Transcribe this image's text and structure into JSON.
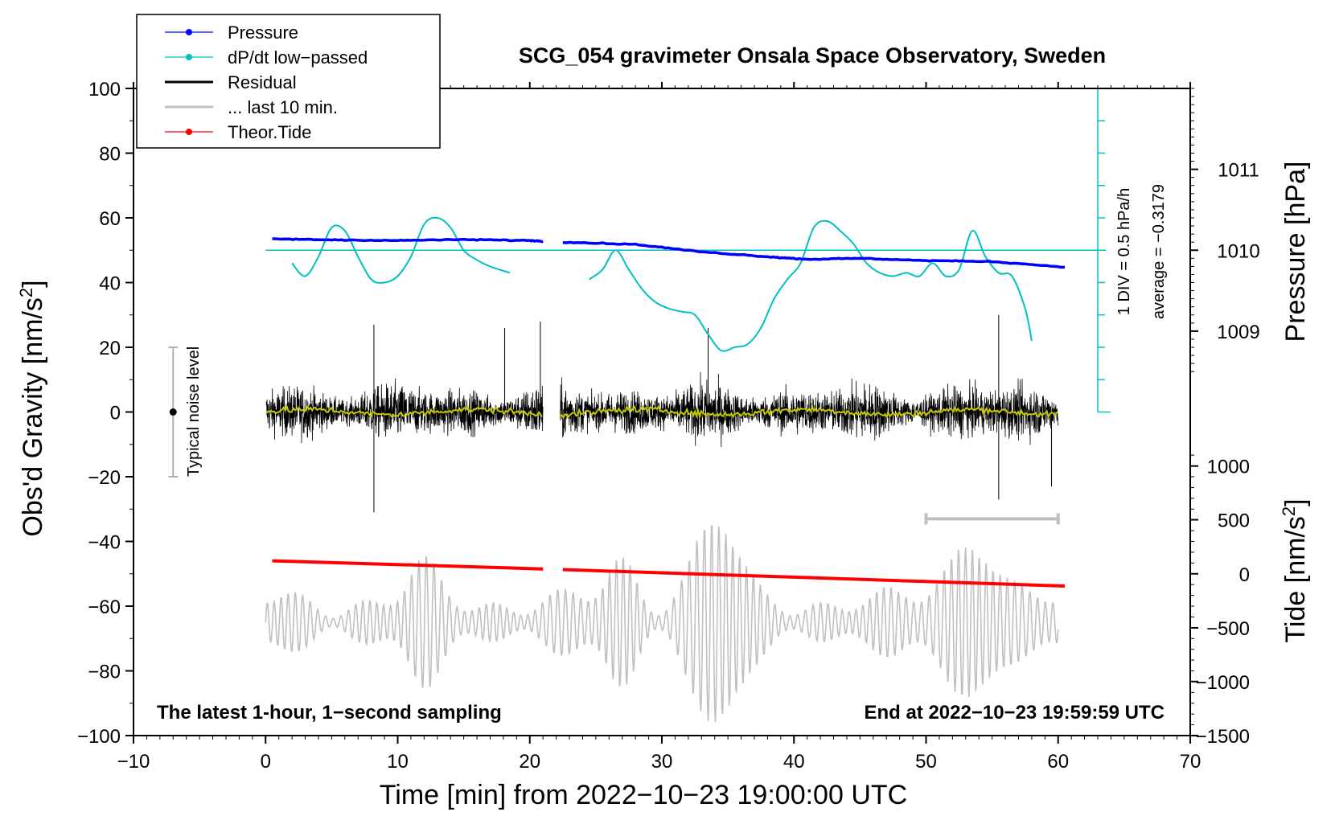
{
  "chart_data": {
    "type": "line",
    "title": "SCG_054 gravimeter Onsala Space Observatory, Sweden",
    "xlabel": "Time [min] from 2022−10−23 19:00:00 UTC",
    "ylabel_left": "Obs'd Gravity [nm/s",
    "ylabel_left_sup": "2",
    "ylabel_left_close": "]",
    "ylabel_right_pressure": "Pressure [hPa]",
    "ylabel_right_tide": "Tide [nm/s",
    "ylabel_right_tide_sup": "2",
    "ylabel_right_tide_close": "]",
    "xlim": [
      -10,
      70
    ],
    "ylim": [
      -100,
      100
    ],
    "xticks": [
      -10,
      0,
      10,
      20,
      30,
      40,
      50,
      60,
      70
    ],
    "xtick_labels": [
      "−10",
      "0",
      "10",
      "20",
      "30",
      "40",
      "50",
      "60",
      "70"
    ],
    "yticks": [
      -100,
      -80,
      -60,
      -40,
      -20,
      0,
      20,
      40,
      60,
      80,
      100
    ],
    "ytick_labels": [
      "−100",
      "−80",
      "−60",
      "−40",
      "−20",
      "0",
      "20",
      "40",
      "60",
      "80",
      "100"
    ],
    "pressure_axis": {
      "ticks": [
        1009,
        1010,
        1011
      ],
      "tick_labels": [
        "1009",
        "1010",
        "1011"
      ],
      "gravity_equiv": [
        25,
        50,
        75
      ]
    },
    "pressure_scale": {
      "label_top": "average = −0.3179",
      "label_bottom": "1 DIV = 0.5 hPa/h",
      "x": 63,
      "y_range": [
        0,
        100
      ],
      "baseline": 50
    },
    "tide_axis": {
      "ticks": [
        1000,
        500,
        0,
        -500,
        -1000,
        -1500
      ],
      "tick_labels": [
        "1000",
        "500",
        "0",
        "−500",
        "−1000",
        "−1500"
      ],
      "gravity_equiv": [
        -16.7,
        -33.3,
        -50,
        -66.7,
        -83.3,
        -100
      ]
    },
    "noise_indicator": {
      "label": "Typical noise level",
      "x": -7,
      "center": 0,
      "range": [
        -20,
        20
      ]
    },
    "last10_bar": {
      "x": [
        50,
        60
      ],
      "y": -33
    },
    "annotation_left": "The latest 1-hour, 1−second sampling",
    "annotation_right": "End at 2022−10−23 19:59:59 UTC",
    "legend": [
      {
        "label": "Pressure",
        "color": "#0000ff",
        "marker": true
      },
      {
        "label": "dP/dt low−passed",
        "color": "#00c0c0",
        "marker": true
      },
      {
        "label": "Residual",
        "color": "#000000",
        "marker": false
      },
      {
        "label": "... last 10 min.",
        "color": "#c0c0c0",
        "marker": false
      },
      {
        "label": "Theor.Tide",
        "color": "#ff0000",
        "marker": true
      }
    ],
    "series": [
      {
        "name": "Pressure",
        "color": "#0000ff",
        "x": [
          0.5,
          5,
          10,
          15,
          20,
          21,
          22.5,
          28,
          33,
          38,
          41,
          45,
          50,
          55,
          60.5
        ],
        "y": [
          53.5,
          53.2,
          53.0,
          53.3,
          53.0,
          52.8,
          52.5,
          51.8,
          49.5,
          48.0,
          47.2,
          47.5,
          46.8,
          46.5,
          44.8
        ]
      },
      {
        "name": "dP/dt low-passed",
        "color": "#00c0c0",
        "segments": [
          {
            "x": [
              2,
              3,
              4,
              5,
              6,
              7,
              8,
              9,
              10,
              11,
              12,
              13,
              14,
              15,
              16,
              17,
              18.5
            ],
            "y": [
              46,
              42,
              48,
              57,
              56,
              48,
              41,
              40,
              42,
              48,
              58,
              60,
              57,
              50,
              47,
              45,
              43
            ]
          },
          {
            "x": [
              24.5,
              25.5,
              26.5,
              27.5,
              28.5,
              29.5,
              30.5,
              31.5,
              32.5,
              33.5,
              34.5,
              35.5,
              36.5,
              37.5,
              38.5,
              39.5,
              40.5,
              41.5,
              42.5,
              43.5,
              44.5,
              45.5,
              46.5,
              47.5,
              48.5,
              49.5,
              50.5,
              51.5,
              52.5,
              53.5,
              54.5,
              55.5,
              56.5,
              57.5,
              58
            ],
            "y": [
              41,
              44,
              50,
              44,
              38,
              34,
              32,
              31,
              30,
              24,
              19,
              20,
              21,
              26,
              35,
              41,
              46,
              57,
              59,
              56,
              52,
              46,
              43,
              42,
              43,
              42,
              46,
              42,
              44,
              56,
              48,
              43,
              42,
              32,
              22
            ]
          }
        ]
      },
      {
        "name": "Residual",
        "color": "#000000",
        "gaps": [
          [
            21,
            22
          ]
        ],
        "x_range": [
          0,
          60
        ],
        "envelope_typical": 12,
        "spikes": [
          {
            "x": 8.2,
            "y": 27
          },
          {
            "x": 8.2,
            "y": -31
          },
          {
            "x": 18.1,
            "y": 26
          },
          {
            "x": 20.8,
            "y": 28
          },
          {
            "x": 33.5,
            "y": 26
          },
          {
            "x": 55.5,
            "y": 30
          },
          {
            "x": 55.5,
            "y": -27
          },
          {
            "x": 59.5,
            "y": -23
          }
        ]
      },
      {
        "name": "Residual smoothed",
        "color": "#c8c800",
        "x_range": [
          0,
          60
        ],
        "y_mean": 0
      },
      {
        "name": "... last 10 min.",
        "color": "#c0c0c0",
        "x_range": [
          0,
          60
        ],
        "y_center": -65,
        "amplitude_typical": 10,
        "amplitude_burst": 25
      },
      {
        "name": "Theor.Tide",
        "color": "#ff0000",
        "segments": [
          {
            "x": [
              0.5,
              21
            ],
            "y": [
              -46,
              -48.5
            ]
          },
          {
            "x": [
              22.5,
              60.5
            ],
            "y": [
              -48.7,
              -53.8
            ]
          }
        ]
      }
    ]
  }
}
